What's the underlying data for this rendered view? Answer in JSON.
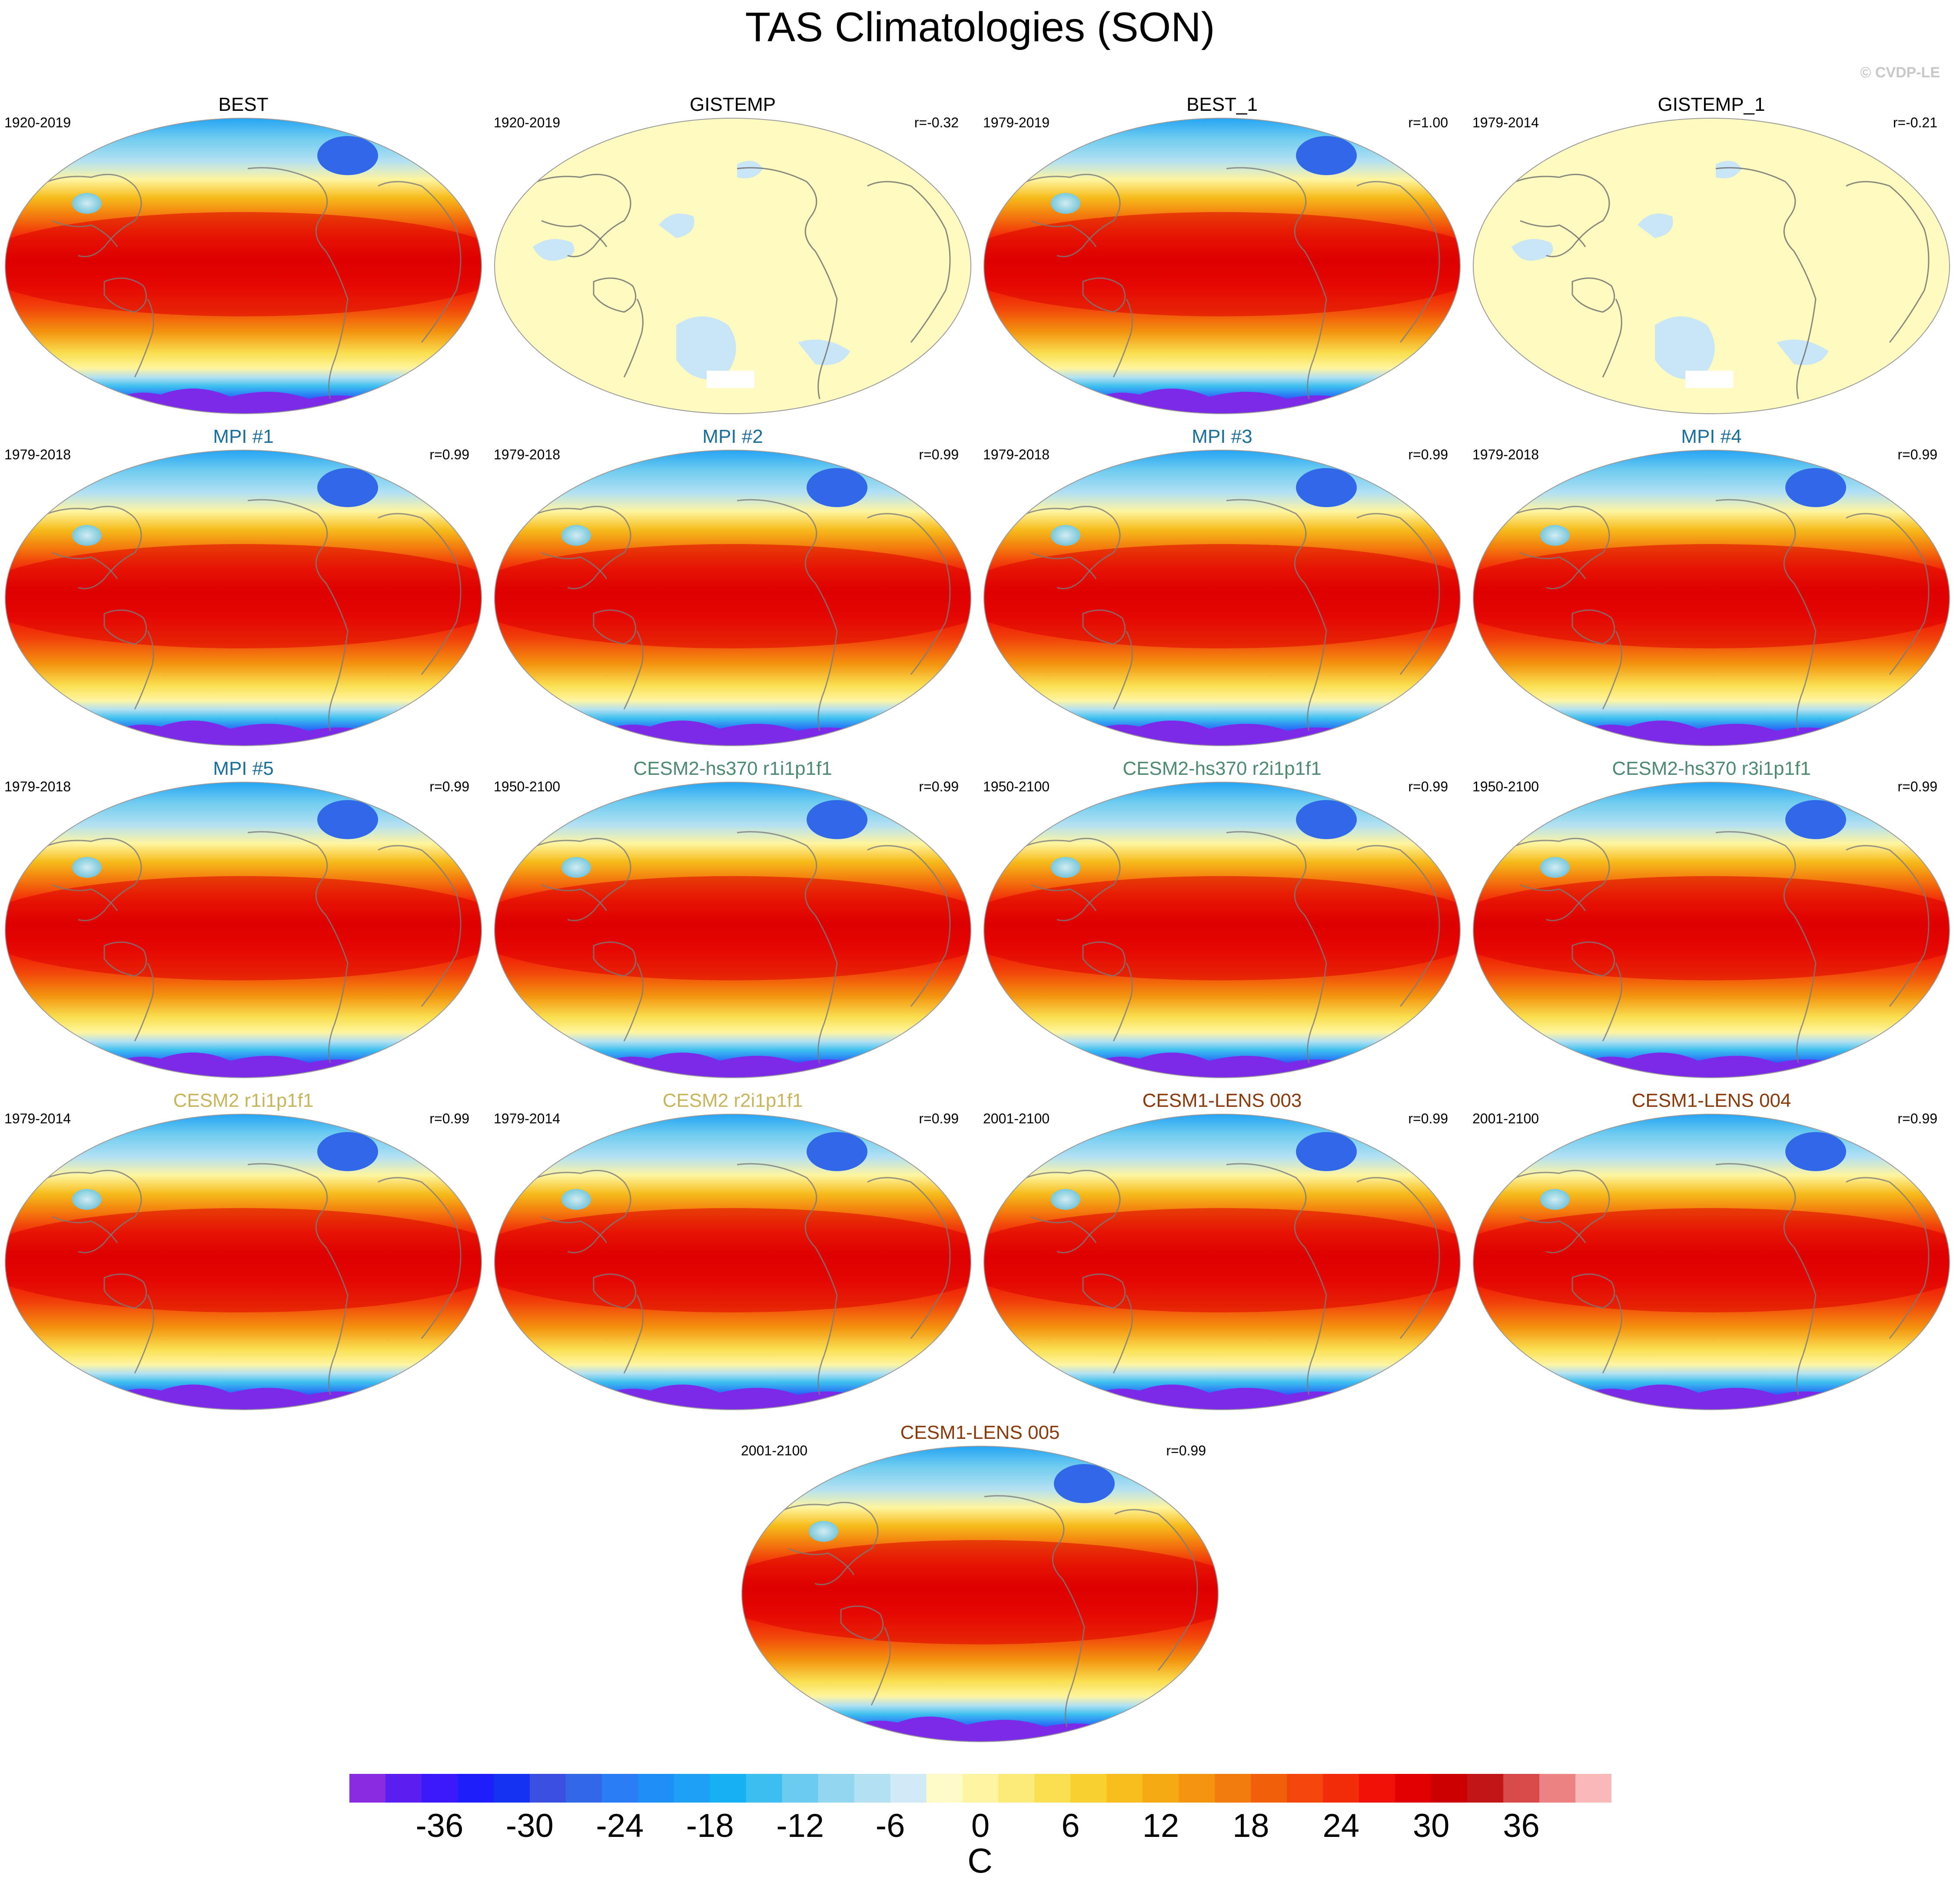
{
  "title": "TAS Climatologies (SON)",
  "credit": "© CVDP-LE",
  "units": "C",
  "colorbar": {
    "ticks": [
      "-36",
      "-30",
      "-24",
      "-18",
      "-12",
      "-6",
      "0",
      "6",
      "12",
      "18",
      "24",
      "30",
      "36"
    ],
    "colors": [
      "#8a2be2",
      "#5a1ff0",
      "#3c19fb",
      "#1e1efa",
      "#1432f0",
      "#3b4fe0",
      "#3168e8",
      "#2a7df5",
      "#1f8ff8",
      "#1ea0f5",
      "#16b1f2",
      "#3cbff0",
      "#6ccbf0",
      "#93d6f0",
      "#b4e1f2",
      "#d0ebf5",
      "#fffbc8",
      "#fff5a0",
      "#fceb78",
      "#fadf50",
      "#f8d030",
      "#f6bd1c",
      "#f5a912",
      "#f49510",
      "#f37c0e",
      "#f2600c",
      "#f2460a",
      "#f22c08",
      "#f01006",
      "#e00000",
      "#cc0000",
      "#c21515",
      "#d94a4a",
      "#ec8282",
      "#fbb8b8"
    ],
    "tick_values": [
      -36,
      -30,
      -24,
      -18,
      -12,
      -6,
      0,
      6,
      12,
      18,
      24,
      30,
      36
    ],
    "min": -42,
    "max": 42
  },
  "panels": [
    {
      "title": "BEST",
      "title_color": "#000000",
      "period": "1920-2019",
      "r": "",
      "style": "full"
    },
    {
      "title": "GISTEMP",
      "title_color": "#000000",
      "period": "1920-2019",
      "r": "r=-0.32",
      "style": "anomaly"
    },
    {
      "title": "BEST_1",
      "title_color": "#000000",
      "period": "1979-2019",
      "r": "r=1.00",
      "style": "full"
    },
    {
      "title": "GISTEMP_1",
      "title_color": "#000000",
      "period": "1979-2014",
      "r": "r=-0.21",
      "style": "anomaly"
    },
    {
      "title": "MPI #1",
      "title_color": "#1a6e9a",
      "period": "1979-2018",
      "r": "r=0.99",
      "style": "full"
    },
    {
      "title": "MPI #2",
      "title_color": "#1a6e9a",
      "period": "1979-2018",
      "r": "r=0.99",
      "style": "full"
    },
    {
      "title": "MPI #3",
      "title_color": "#1a6e9a",
      "period": "1979-2018",
      "r": "r=0.99",
      "style": "full"
    },
    {
      "title": "MPI #4",
      "title_color": "#1a6e9a",
      "period": "1979-2018",
      "r": "r=0.99",
      "style": "full"
    },
    {
      "title": "MPI #5",
      "title_color": "#1a6e9a",
      "period": "1979-2018",
      "r": "r=0.99",
      "style": "full"
    },
    {
      "title": "CESM2-hs370 r1i1p1f1",
      "title_color": "#4d8a70",
      "period": "1950-2100",
      "r": "r=0.99",
      "style": "full"
    },
    {
      "title": "CESM2-hs370 r2i1p1f1",
      "title_color": "#4d8a70",
      "period": "1950-2100",
      "r": "r=0.99",
      "style": "full"
    },
    {
      "title": "CESM2-hs370 r3i1p1f1",
      "title_color": "#4d8a70",
      "period": "1950-2100",
      "r": "r=0.99",
      "style": "full"
    },
    {
      "title": "CESM2 r1i1p1f1",
      "title_color": "#c8b45a",
      "period": "1979-2014",
      "r": "r=0.99",
      "style": "full"
    },
    {
      "title": "CESM2 r2i1p1f1",
      "title_color": "#c8b45a",
      "period": "1979-2014",
      "r": "r=0.99",
      "style": "full"
    },
    {
      "title": "CESM1-LENS 003",
      "title_color": "#8a3a0a",
      "period": "2001-2100",
      "r": "r=0.99",
      "style": "full"
    },
    {
      "title": "CESM1-LENS 004",
      "title_color": "#8a3a0a",
      "period": "2001-2100",
      "r": "r=0.99",
      "style": "full"
    },
    {
      "title": "CESM1-LENS 005",
      "title_color": "#8a3a0a",
      "period": "2001-2100",
      "r": "r=0.99",
      "style": "full"
    }
  ]
}
